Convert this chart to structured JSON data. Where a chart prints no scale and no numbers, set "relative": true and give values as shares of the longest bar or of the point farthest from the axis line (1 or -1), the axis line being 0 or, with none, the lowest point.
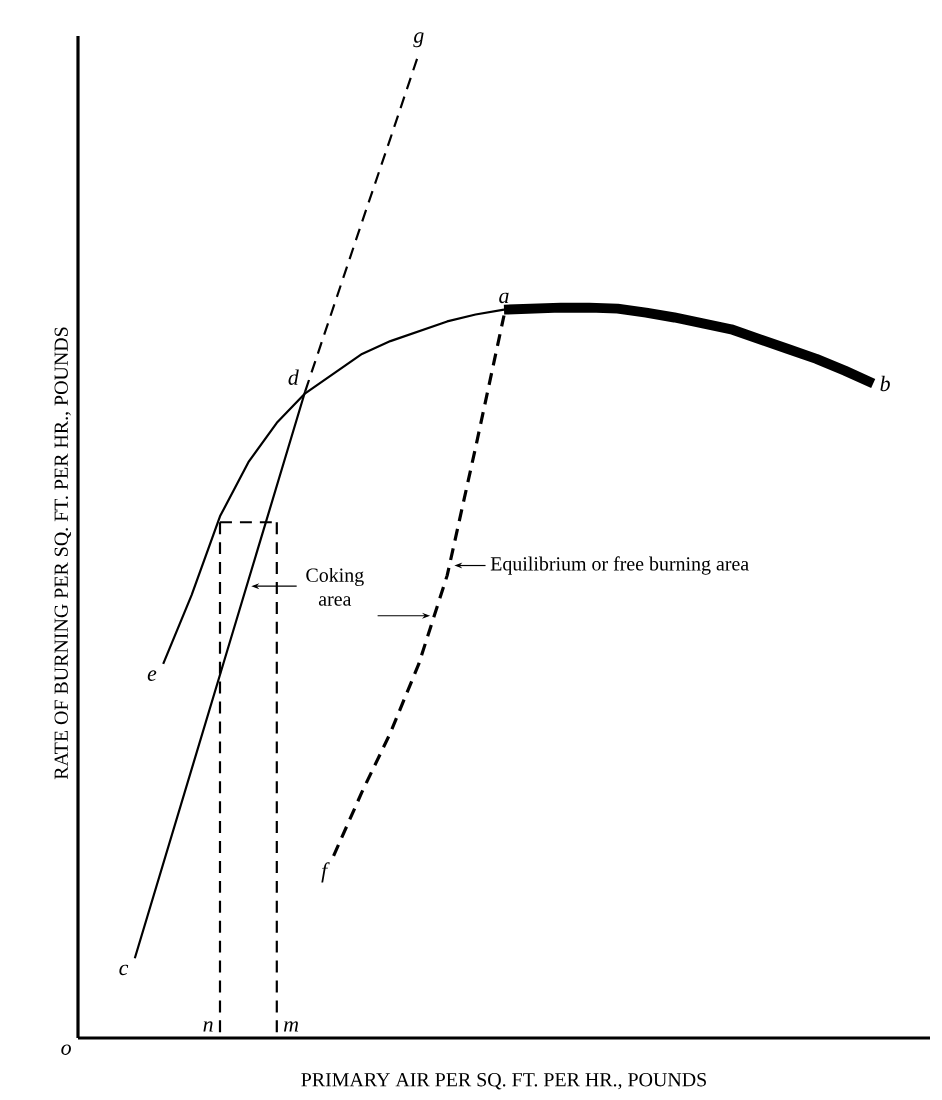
{
  "chart_data": {
    "type": "line",
    "relative": true,
    "xlabel": "PRIMARY AIR PER SQ. FT. PER HR., POUNDS",
    "ylabel": "RATE OF BURNING PER SQ. FT. PER HR., POUNDS",
    "categories": [
      null,
      null,
      null,
      null,
      null,
      null,
      null,
      null,
      null,
      null,
      null,
      null,
      null,
      null,
      null,
      null,
      null,
      null,
      null,
      null,
      null,
      null,
      null,
      null,
      null,
      null,
      null,
      null,
      null,
      null,
      null
    ],
    "series": [
      {
        "color": "#000000",
        "values": [
          null,
          null,
          null,
          0.38,
          0.45,
          0.53,
          0.585,
          0.625,
          0.655,
          0.675,
          0.695,
          0.708,
          0.718,
          0.728,
          0.735,
          0.74,
          null,
          null,
          null,
          null,
          null,
          null,
          null,
          null,
          null,
          null,
          null,
          null,
          null,
          null,
          null
        ]
      },
      {
        "color": "#000000",
        "values": [
          null,
          null,
          null,
          null,
          null,
          null,
          null,
          null,
          null,
          null,
          null,
          null,
          null,
          null,
          null,
          0.74,
          0.741,
          0.742,
          0.742,
          0.741,
          0.737,
          0.732,
          0.726,
          0.72,
          0.71,
          0.7,
          0.69,
          0.678,
          0.665,
          null,
          null
        ]
      },
      {
        "color": "#000000",
        "values": [
          null,
          null,
          0.081,
          0.177,
          0.273,
          0.369,
          0.465,
          0.561,
          0.657,
          null,
          null,
          null,
          null,
          null,
          null,
          null,
          null,
          null,
          null,
          null,
          null,
          null,
          null,
          null,
          null,
          null,
          null,
          null,
          null,
          null,
          null
        ]
      },
      {
        "color": "#000000",
        "line_style": "dashed",
        "values": [
          null,
          null,
          null,
          null,
          null,
          null,
          null,
          null,
          0.657,
          0.743,
          0.829,
          0.914,
          1.0,
          null,
          null,
          null,
          null,
          null,
          null,
          null,
          null,
          null,
          null,
          null,
          null,
          null,
          null,
          null,
          null,
          null,
          null
        ]
      },
      {
        "color": "#000000",
        "line_style": "dashed",
        "values": [
          null,
          null,
          null,
          null,
          null,
          null,
          null,
          null,
          null,
          0.185,
          0.25,
          0.31,
          0.38,
          0.47,
          0.6,
          0.734,
          null,
          null,
          null,
          null,
          null,
          null,
          null,
          null,
          null,
          null,
          null,
          null,
          null,
          null,
          null
        ]
      },
      {
        "color": "#000000",
        "line_style": "dashed",
        "values": [
          null,
          null,
          null,
          null,
          null,
          0.524,
          0.524,
          0.524,
          null,
          null,
          null,
          null,
          null,
          null,
          null,
          null,
          null,
          null,
          null,
          null,
          null,
          null,
          null,
          null,
          null,
          null,
          null,
          null,
          null,
          null,
          null
        ]
      }
    ],
    "annotations": [
      "Coking area",
      "Equilibrium or free burning area",
      "a",
      "b",
      "c",
      "d",
      "e",
      "f",
      "g",
      "n",
      "m",
      "o"
    ]
  }
}
